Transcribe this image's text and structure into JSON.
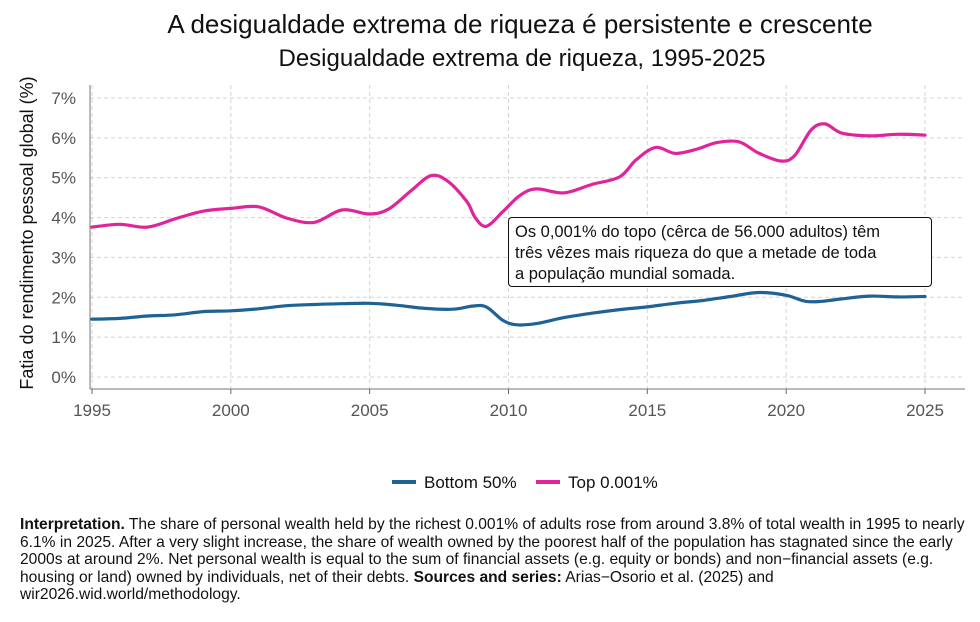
{
  "title": "A desigualdade extrema de riqueza é persistente e crescente",
  "subtitle": "Desigualdade extrema de riqueza, 1995-2025",
  "annotation": {
    "line1": "Os 0,001% do topo (cêrca de 56.000 adultos) têm",
    "line2": "três  vêzes mais riqueza do que a metade de toda",
    "line3": "a população mundial somada."
  },
  "note": {
    "interpretation_label": "Interpretation.",
    "interpretation_text": " The share of personal wealth held by the richest 0.001% of adults rose from around 3.8% of total wealth in 1995 to nearly 6.1% in 2025. After a very slight increase, the share of wealth owned by the poorest half of the population has stagnated since the early 2000s at around 2%. Net personal wealth is equal to the sum of financial assets (e.g. equity or bonds) and non−financial assets (e.g. housing or land) owned by individuals, net of their debts.",
    "sources_label": "Sources and series:",
    "sources_text": " Arias−Osorio et al. (2025) and wir2026.wid.world/methodology."
  },
  "chart_data": {
    "type": "line",
    "title": "A desigualdade extrema de riqueza é persistente e crescente",
    "subtitle": "Desigualdade extrema de riqueza, 1995-2025",
    "xlabel": "",
    "ylabel": "Fatia do rendimento pessoal global (%)",
    "xlim": [
      1995,
      2025
    ],
    "ylim": [
      0,
      7
    ],
    "x_ticks": [
      1995,
      2000,
      2005,
      2010,
      2015,
      2020,
      2025
    ],
    "y_ticks": [
      0,
      1,
      2,
      3,
      4,
      5,
      6,
      7
    ],
    "y_tick_labels": [
      "0%",
      "1%",
      "2%",
      "3%",
      "4%",
      "5%",
      "6%",
      "7%"
    ],
    "grid": true,
    "legend_position": "bottom",
    "series": [
      {
        "name": "Bottom 50%",
        "color": "#1f6296",
        "points": [
          [
            1995,
            1.45
          ],
          [
            1996,
            1.47
          ],
          [
            1997,
            1.53
          ],
          [
            1998,
            1.56
          ],
          [
            1999,
            1.64
          ],
          [
            2000,
            1.66
          ],
          [
            2001,
            1.71
          ],
          [
            2002,
            1.79
          ],
          [
            2003,
            1.82
          ],
          [
            2004,
            1.84
          ],
          [
            2005,
            1.85
          ],
          [
            2006,
            1.8
          ],
          [
            2007,
            1.72
          ],
          [
            2008,
            1.7
          ],
          [
            2008.7,
            1.78
          ],
          [
            2009.2,
            1.76
          ],
          [
            2009.8,
            1.42
          ],
          [
            2010.3,
            1.31
          ],
          [
            2011,
            1.34
          ],
          [
            2012,
            1.49
          ],
          [
            2013,
            1.6
          ],
          [
            2014,
            1.69
          ],
          [
            2015,
            1.76
          ],
          [
            2016,
            1.85
          ],
          [
            2017,
            1.92
          ],
          [
            2018,
            2.02
          ],
          [
            2019,
            2.12
          ],
          [
            2020,
            2.05
          ],
          [
            2020.7,
            1.9
          ],
          [
            2021.3,
            1.9
          ],
          [
            2022,
            1.96
          ],
          [
            2023,
            2.03
          ],
          [
            2024,
            2.01
          ],
          [
            2025,
            2.02
          ]
        ]
      },
      {
        "name": "Top 0.001%",
        "color": "#e0249a",
        "points": [
          [
            1995,
            3.76
          ],
          [
            1996,
            3.83
          ],
          [
            1997,
            3.76
          ],
          [
            1998,
            3.97
          ],
          [
            1999,
            4.16
          ],
          [
            2000,
            4.23
          ],
          [
            2001,
            4.27
          ],
          [
            2002,
            3.99
          ],
          [
            2003,
            3.88
          ],
          [
            2004,
            4.19
          ],
          [
            2005,
            4.09
          ],
          [
            2005.7,
            4.22
          ],
          [
            2006.5,
            4.68
          ],
          [
            2007.2,
            5.05
          ],
          [
            2007.8,
            4.92
          ],
          [
            2008.5,
            4.4
          ],
          [
            2008.8,
            4.0
          ],
          [
            2009.2,
            3.78
          ],
          [
            2009.8,
            4.15
          ],
          [
            2010.4,
            4.55
          ],
          [
            2011,
            4.72
          ],
          [
            2012,
            4.62
          ],
          [
            2013,
            4.83
          ],
          [
            2014,
            5.02
          ],
          [
            2014.6,
            5.45
          ],
          [
            2015.3,
            5.76
          ],
          [
            2016,
            5.61
          ],
          [
            2016.8,
            5.72
          ],
          [
            2017.5,
            5.88
          ],
          [
            2018.3,
            5.9
          ],
          [
            2019,
            5.62
          ],
          [
            2019.8,
            5.42
          ],
          [
            2020.3,
            5.55
          ],
          [
            2020.9,
            6.2
          ],
          [
            2021.4,
            6.35
          ],
          [
            2022,
            6.12
          ],
          [
            2023,
            6.05
          ],
          [
            2024,
            6.09
          ],
          [
            2025,
            6.07
          ]
        ]
      }
    ]
  }
}
